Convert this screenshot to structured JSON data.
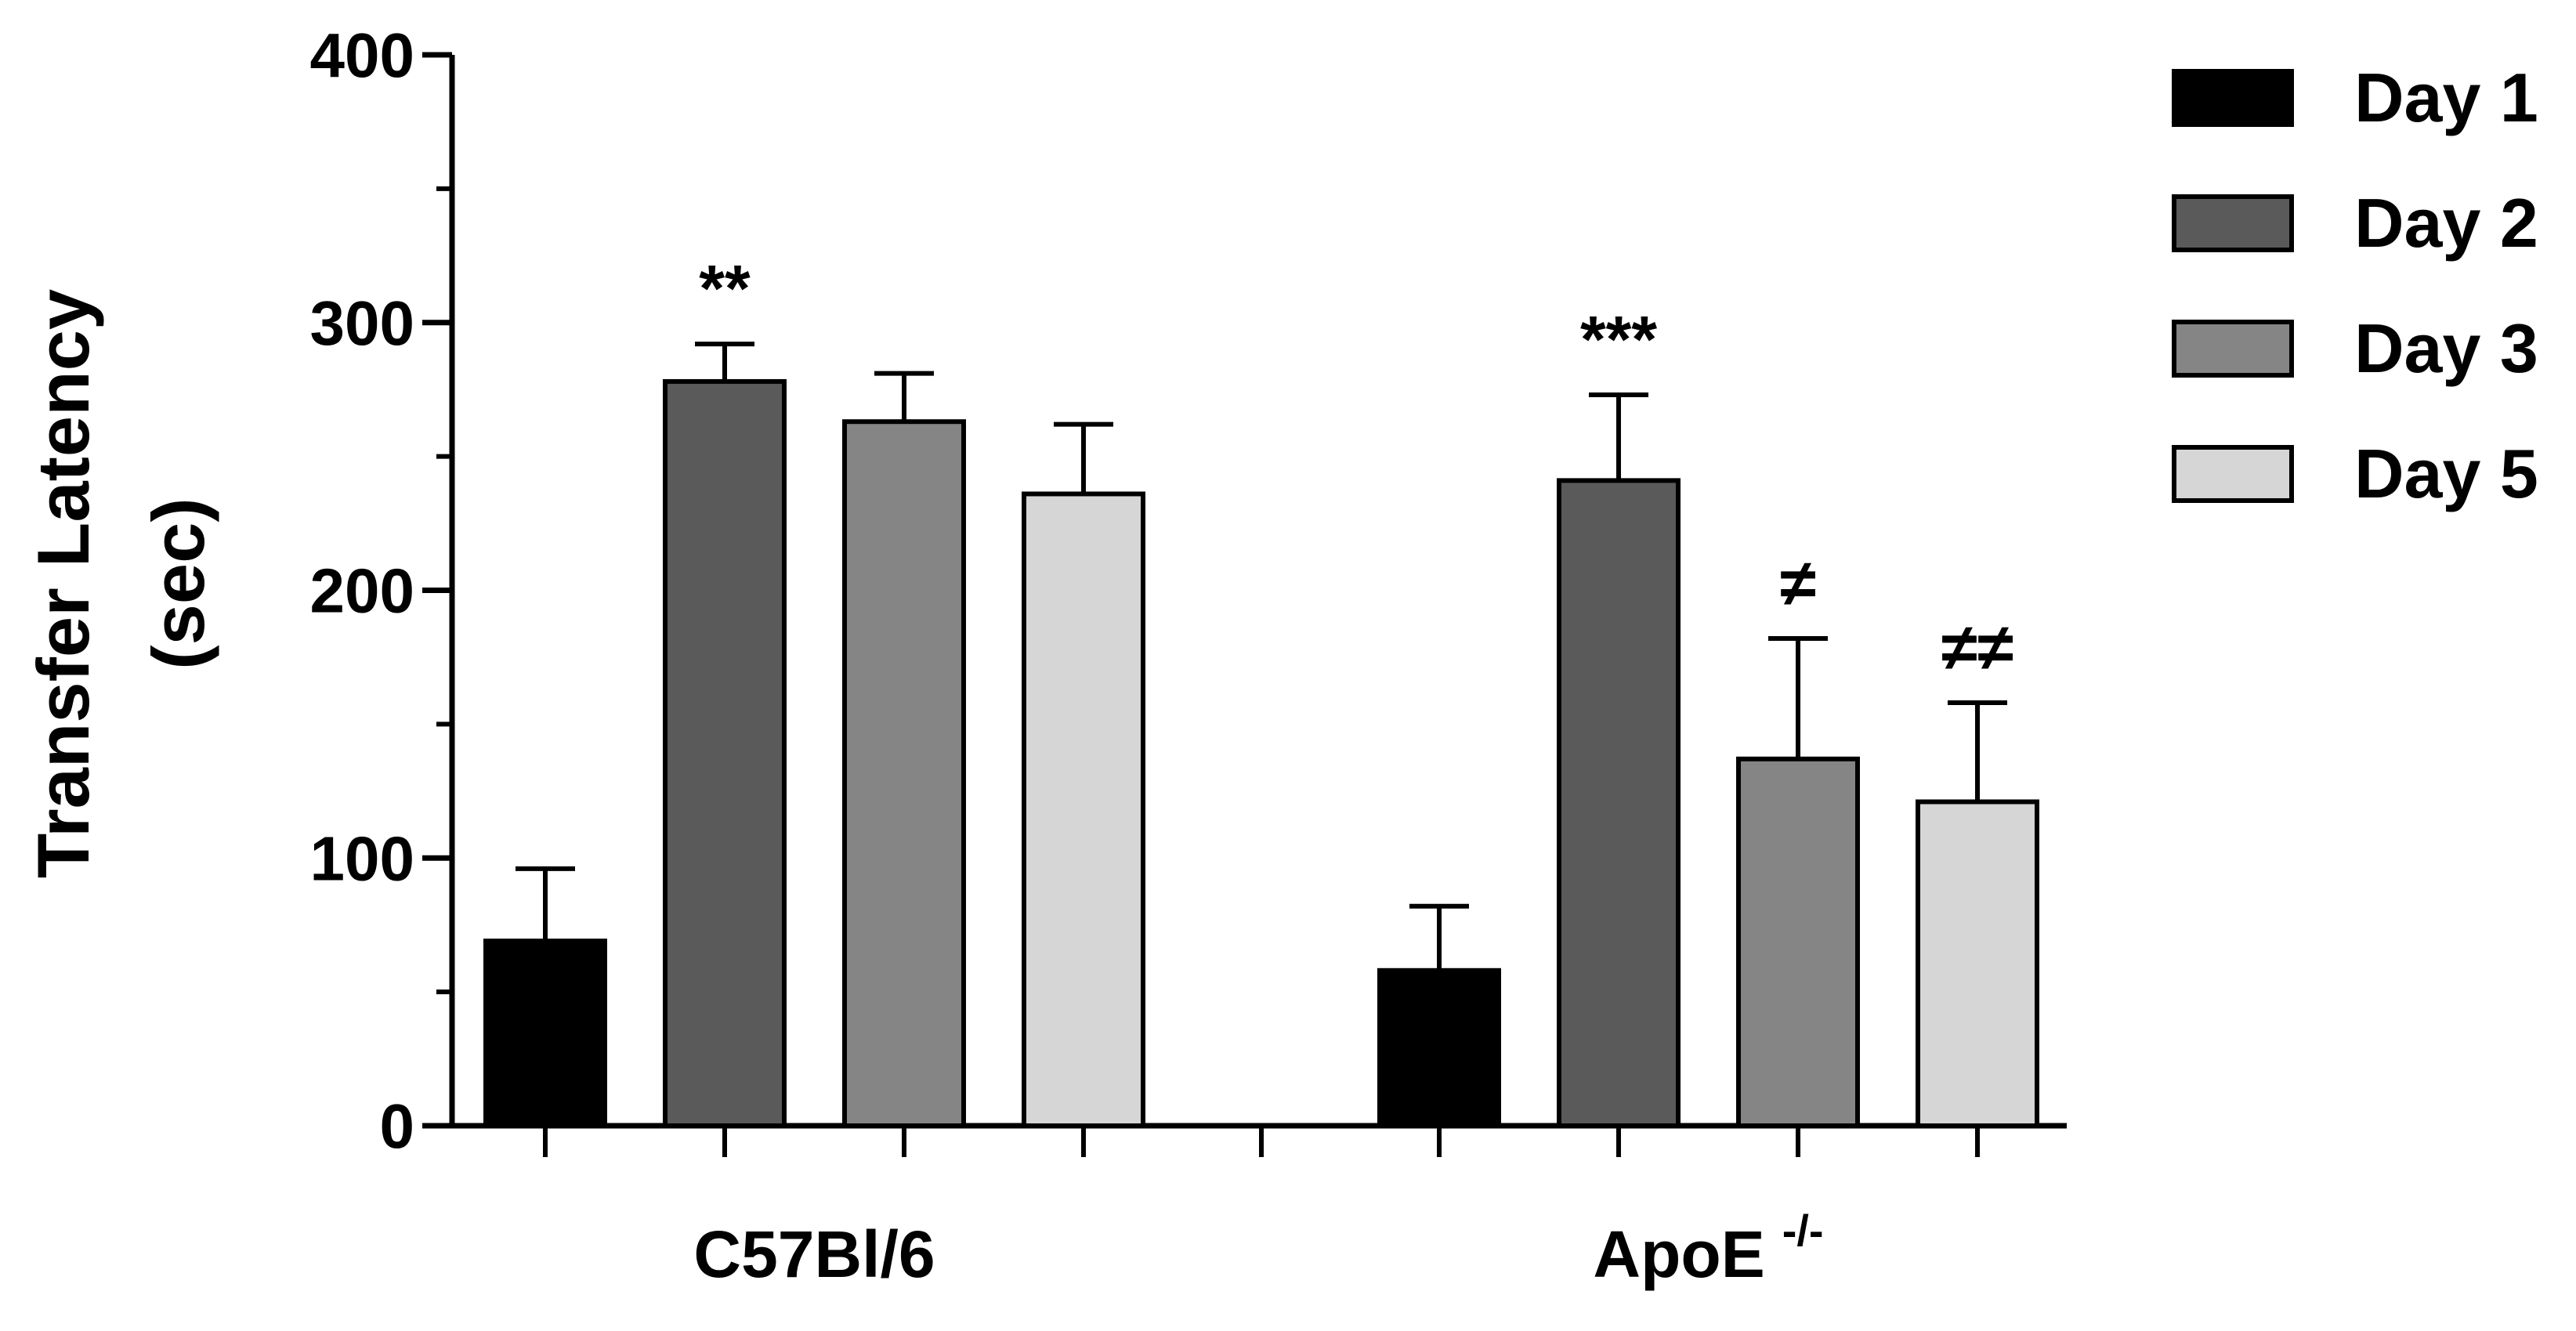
{
  "chart_data": {
    "type": "bar",
    "title": "",
    "ylabel_lines": [
      "Transfer Latency",
      "(sec)"
    ],
    "xlabel": "",
    "ylim": [
      0,
      400
    ],
    "yticks": [
      "0",
      "100",
      "200",
      "300",
      "400"
    ],
    "categories": [
      {
        "label": "C57Bl/6",
        "superscript": ""
      },
      {
        "label": "ApoE",
        "superscript": "-/-"
      }
    ],
    "series": [
      {
        "name": "Day 1",
        "color": "#000000",
        "values": [
          69,
          58
        ],
        "errors": [
          27,
          24
        ]
      },
      {
        "name": "Day 2",
        "color": "#5a5a5a",
        "values": [
          278,
          241
        ],
        "errors": [
          14,
          32
        ]
      },
      {
        "name": "Day 3",
        "color": "#858585",
        "values": [
          263,
          137
        ],
        "errors": [
          18,
          45
        ]
      },
      {
        "name": "Day 5",
        "color": "#d6d6d6",
        "values": [
          236,
          121
        ],
        "errors": [
          26,
          37
        ]
      }
    ],
    "annotations": [
      {
        "category": 0,
        "series": 1,
        "text": "**"
      },
      {
        "category": 1,
        "series": 1,
        "text": "***"
      },
      {
        "category": 1,
        "series": 2,
        "text": "≠"
      },
      {
        "category": 1,
        "series": 3,
        "text": "≠≠"
      }
    ],
    "legend_position": "top-right",
    "grid": false
  }
}
